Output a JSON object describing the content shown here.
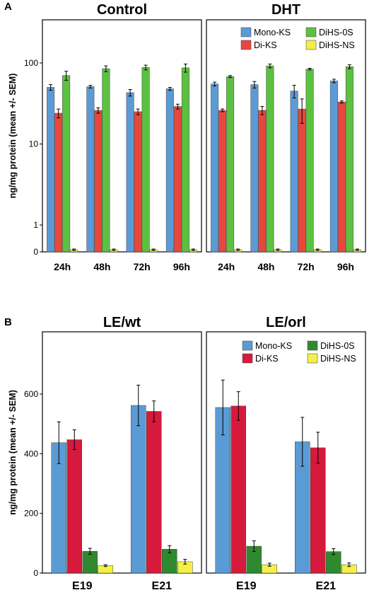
{
  "colors": {
    "Mono-KS": "#5b9bd5",
    "Di-KS": "#e8473e",
    "DiHS-0S": "#5cc040",
    "DiHS-NS": "#f2ee46",
    "DiHS-0S_B": "#2f8a2f",
    "DiKS_B": "#d61a3c",
    "DiHS-NS_B": "#f5f048"
  },
  "chart_data": [
    {
      "panel": "A",
      "type": "bar",
      "ylabel": "ng/mg protein (mean +/- SEM)",
      "yscale": "log",
      "yticks": [
        "0",
        "1",
        "10",
        "100"
      ],
      "categories": [
        "24h",
        "48h",
        "72h",
        "96h"
      ],
      "legend": [
        "Mono-KS",
        "Di-KS",
        "DiHS-0S",
        "DiHS-NS"
      ],
      "legend_position": "top-right of right panel",
      "facets": [
        {
          "title": "Control",
          "series": [
            {
              "name": "Mono-KS",
              "values": [
                50,
                51,
                43,
                48
              ],
              "err": [
                4,
                2,
                4,
                2
              ]
            },
            {
              "name": "Di-KS",
              "values": [
                24,
                26,
                25,
                29
              ],
              "err": [
                3,
                2,
                2,
                2
              ]
            },
            {
              "name": "DiHS-0S",
              "values": [
                70,
                85,
                88,
                87
              ],
              "err": [
                9,
                7,
                6,
                10
              ]
            },
            {
              "name": "DiHS-NS",
              "values": [
                0.1,
                0.1,
                0.1,
                0.1
              ],
              "err": [
                0.02,
                0.02,
                0.02,
                0.02
              ]
            }
          ]
        },
        {
          "title": "DHT",
          "series": [
            {
              "name": "Mono-KS",
              "values": [
                55,
                54,
                45,
                60
              ],
              "err": [
                3,
                5,
                8,
                3
              ]
            },
            {
              "name": "Di-KS",
              "values": [
                26,
                26,
                27,
                33
              ],
              "err": [
                1,
                3,
                9,
                1
              ]
            },
            {
              "name": "DiHS-0S",
              "values": [
                68,
                92,
                84,
                90
              ],
              "err": [
                2,
                5,
                2,
                5
              ]
            },
            {
              "name": "DiHS-NS",
              "values": [
                0.1,
                0.1,
                0.1,
                0.1
              ],
              "err": [
                0.02,
                0.02,
                0.02,
                0.02
              ]
            }
          ]
        }
      ]
    },
    {
      "panel": "B",
      "type": "bar",
      "ylabel": "ng/mg protein (mean +/- SEM)",
      "ylim": [
        0,
        700
      ],
      "yticks": [
        "0",
        "200",
        "400",
        "600"
      ],
      "categories": [
        "E19",
        "E21"
      ],
      "legend": [
        "Mono-KS",
        "Di-KS",
        "DiHS-0S",
        "DiHS-NS"
      ],
      "legend_position": "top-right of right panel",
      "facets": [
        {
          "title": "LE/wt",
          "series": [
            {
              "name": "Mono-KS",
              "values": [
                437,
                562
              ],
              "err": [
                70,
                68
              ]
            },
            {
              "name": "Di-KS",
              "values": [
                447,
                542
              ],
              "err": [
                33,
                35
              ]
            },
            {
              "name": "DiHS-0S",
              "values": [
                73,
                80
              ],
              "err": [
                10,
                12
              ]
            },
            {
              "name": "DiHS-NS",
              "values": [
                25,
                38
              ],
              "err": [
                3,
                8
              ]
            }
          ]
        },
        {
          "title": "LE/orl",
          "series": [
            {
              "name": "Mono-KS",
              "values": [
                555,
                440
              ],
              "err": [
                92,
                82
              ]
            },
            {
              "name": "Di-KS",
              "values": [
                560,
                420
              ],
              "err": [
                48,
                52
              ]
            },
            {
              "name": "DiHS-0S",
              "values": [
                90,
                72
              ],
              "err": [
                18,
                10
              ]
            },
            {
              "name": "DiHS-NS",
              "values": [
                28,
                28
              ],
              "err": [
                5,
                6
              ]
            }
          ]
        }
      ]
    }
  ]
}
